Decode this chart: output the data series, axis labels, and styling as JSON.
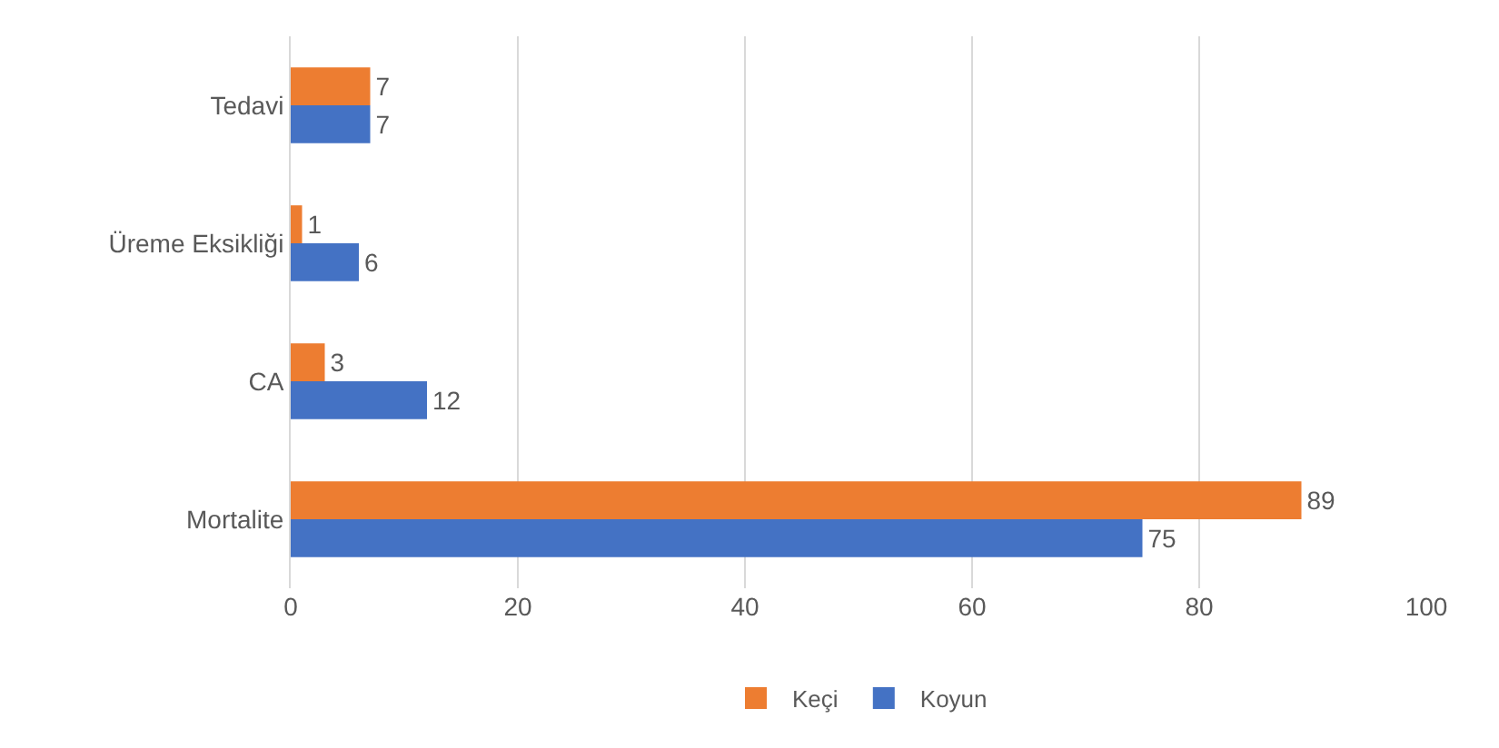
{
  "chart_data": {
    "type": "bar",
    "orientation": "horizontal",
    "categories": [
      "Tedavi",
      "Üreme Eksikliği",
      "CA",
      "Mortalite"
    ],
    "series": [
      {
        "name": "Keçi",
        "color": "#ed7d31",
        "values": [
          7,
          1,
          3,
          89
        ]
      },
      {
        "name": "Koyun",
        "color": "#4472c4",
        "values": [
          7,
          6,
          12,
          75
        ]
      }
    ],
    "xlim": [
      0,
      100
    ],
    "xticks": [
      0,
      20,
      40,
      60,
      80,
      100
    ],
    "grid": "x",
    "legend": "bottom",
    "data_labels": true
  }
}
